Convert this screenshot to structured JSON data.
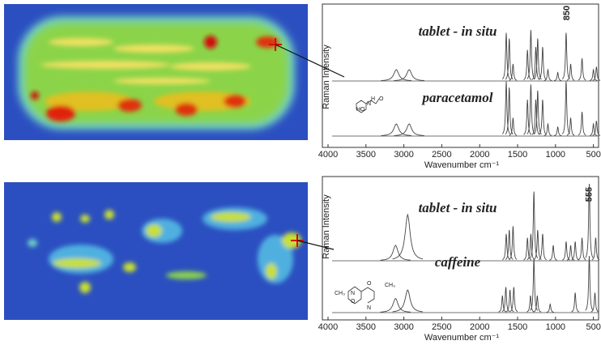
{
  "chart_data": [
    {
      "type": "line",
      "ylabel": "Raman Intensity",
      "xlabel": "Wavenumber cm⁻¹",
      "xlim": [
        4000,
        400
      ],
      "xticks": [
        4000,
        3500,
        3000,
        2500,
        2000,
        1500,
        1000,
        500
      ],
      "annotation": {
        "text": "850",
        "x": 850
      },
      "molecule_labels": [
        "HO",
        "N",
        "H",
        "O"
      ],
      "series": [
        {
          "name": "tablet - in situ",
          "color": "#444444",
          "x": [
            3100,
            2930,
            1650,
            1610,
            1560,
            1370,
            1325,
            1260,
            1235,
            1170,
            1100,
            970,
            860,
            800,
            650,
            500,
            460
          ],
          "values": [
            0.2,
            0.2,
            0.85,
            0.75,
            0.3,
            0.55,
            0.9,
            0.6,
            0.75,
            0.6,
            0.2,
            0.15,
            0.85,
            0.3,
            0.4,
            0.2,
            0.25
          ]
        },
        {
          "name": "paracetamol",
          "color": "#444444",
          "x": [
            3100,
            2930,
            1650,
            1610,
            1560,
            1370,
            1325,
            1260,
            1235,
            1170,
            1100,
            970,
            860,
            800,
            650,
            500,
            460
          ],
          "values": [
            0.2,
            0.2,
            0.9,
            0.8,
            0.3,
            0.6,
            0.85,
            0.6,
            0.75,
            0.6,
            0.2,
            0.15,
            0.9,
            0.3,
            0.4,
            0.2,
            0.25
          ]
        }
      ]
    },
    {
      "type": "line",
      "ylabel": "Raman Intensity",
      "xlabel": "Wavenumber cm⁻¹",
      "xlim": [
        4000,
        400
      ],
      "xticks": [
        4000,
        3500,
        3000,
        2500,
        2000,
        1500,
        1000,
        500
      ],
      "annotation": {
        "text": "555",
        "x": 555
      },
      "molecule_labels": [
        "O",
        "N",
        "N",
        "CH₃",
        "O",
        "CH₃"
      ],
      "series": [
        {
          "name": "tablet - in situ",
          "color": "#444444",
          "x": [
            3110,
            2950,
            1650,
            1610,
            1560,
            1370,
            1325,
            1285,
            1235,
            1170,
            1030,
            860,
            800,
            740,
            650,
            555,
            470
          ],
          "values": [
            0.2,
            0.6,
            0.35,
            0.4,
            0.45,
            0.3,
            0.35,
            0.9,
            0.4,
            0.35,
            0.2,
            0.25,
            0.2,
            0.25,
            0.3,
            1.0,
            0.3
          ]
        },
        {
          "name": "caffeine",
          "color": "#444444",
          "x": [
            3110,
            2950,
            1700,
            1655,
            1600,
            1550,
            1330,
            1285,
            1240,
            1070,
            740,
            555,
            480
          ],
          "values": [
            0.25,
            0.4,
            0.3,
            0.45,
            0.4,
            0.45,
            0.3,
            0.95,
            0.3,
            0.15,
            0.35,
            1.0,
            0.35
          ]
        }
      ]
    }
  ]
}
